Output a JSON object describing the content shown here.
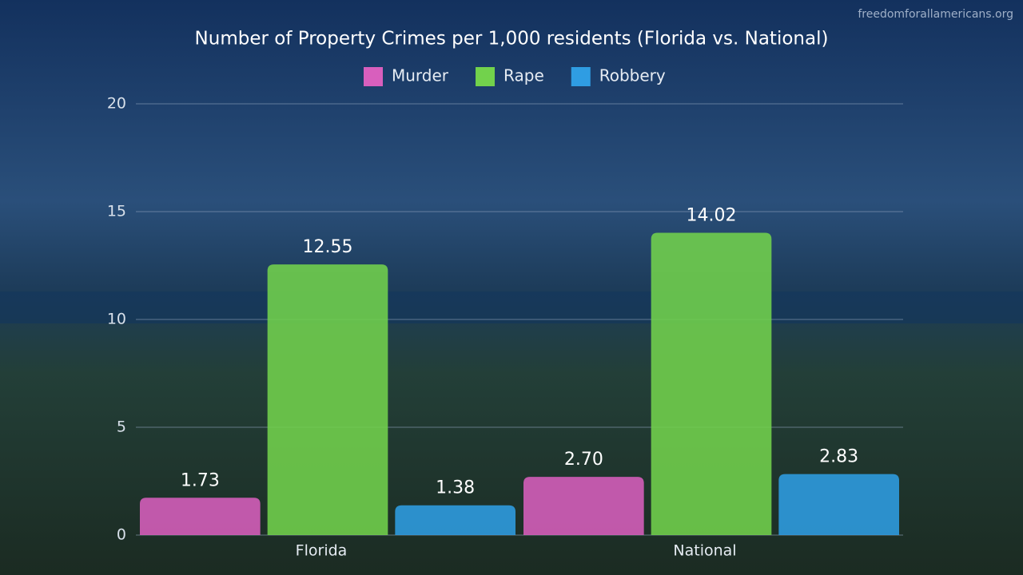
{
  "watermark": "freedomforallamericans.org",
  "chart_data": {
    "type": "bar",
    "title": "Number of Property Crimes per 1,000 residents  (Florida vs. National)",
    "categories": [
      "Florida",
      "National"
    ],
    "series": [
      {
        "name": "Murder",
        "color": "#d85fbd",
        "values": [
          1.73,
          2.7
        ],
        "value_labels": [
          "1.73",
          "2.70"
        ]
      },
      {
        "name": "Rape",
        "color": "#72d24c",
        "values": [
          12.55,
          14.02
        ]
      },
      {
        "name": "Robbery",
        "color": "#2f9de3",
        "values": [
          1.38,
          2.83
        ]
      }
    ],
    "ylim": [
      0,
      20
    ],
    "yticks": [
      0,
      5,
      10,
      15,
      20
    ],
    "grid": true
  }
}
